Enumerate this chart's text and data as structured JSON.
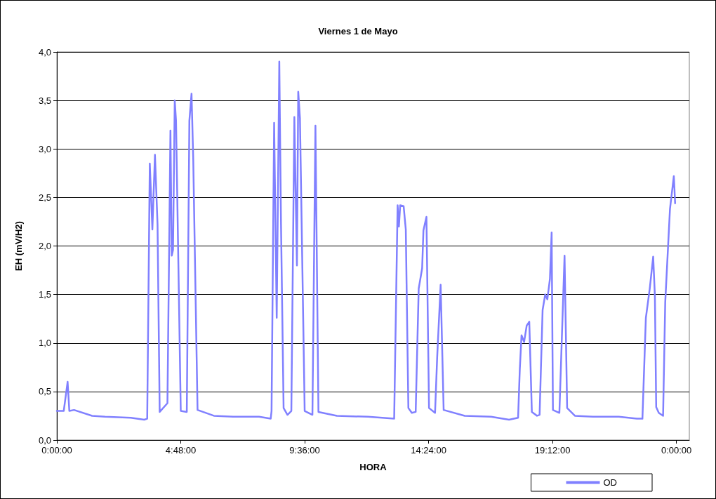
{
  "chart_data": {
    "type": "line",
    "title": "Viernes 1 de Mayo",
    "xlabel": "HORA",
    "ylabel": "EH (mV/H2)",
    "xlim": [
      "--05-01T00:00",
      "--05-02T00:30"
    ],
    "xticks": [
      {
        "value": "--05-01T00:00",
        "label": "0:00:00"
      },
      {
        "value": "--05-01T04:48",
        "label": "4:48:00"
      },
      {
        "value": "--05-01T09:36",
        "label": "9:36:00"
      },
      {
        "value": "--05-01T14:24",
        "label": "14:24:00"
      },
      {
        "value": "--05-01T19:12",
        "label": "19:12:00"
      },
      {
        "value": "--05-02T00:00",
        "label": "0:00:00"
      }
    ],
    "ylim": [
      0,
      4
    ],
    "yticks": [
      {
        "value": 0,
        "label": "0,0"
      },
      {
        "value": 0.5,
        "label": "0,5"
      },
      {
        "value": 1,
        "label": "1,0"
      },
      {
        "value": 1.5,
        "label": "1,5"
      },
      {
        "value": 2,
        "label": "2,0"
      },
      {
        "value": 2.5,
        "label": "2,5"
      },
      {
        "value": 3,
        "label": "3,0"
      },
      {
        "value": 3.5,
        "label": "3,5"
      },
      {
        "value": 4,
        "label": "4,0"
      }
    ],
    "grid": "y",
    "legend": "bottom right",
    "marker": "none",
    "line_style": "solid",
    "series": [
      {
        "name": "OD",
        "color": "#8080ff",
        "x": [
          "--05-01T00:00",
          "--05-01T00:16",
          "--05-01T00:25",
          "--05-01T00:29",
          "--05-01T00:40",
          "--05-01T01:22",
          "--05-01T01:52",
          "--05-01T02:52",
          "--05-01T03:23",
          "--05-01T03:30",
          "--05-01T03:36",
          "--05-01T03:42",
          "--05-01T03:48",
          "--05-01T03:54",
          "--05-01T03:59",
          "--05-01T04:17",
          "--05-01T04:24",
          "--05-01T04:27",
          "--05-01T04:30",
          "--05-01T04:34",
          "--05-01T04:37",
          "--05-01T04:48",
          "--05-01T05:02",
          "--05-01T05:08",
          "--05-01T05:13",
          "--05-01T05:17",
          "--05-01T05:27",
          "--05-01T06:05",
          "--05-01T06:50",
          "--05-01T07:50",
          "--05-01T08:17",
          "--05-01T08:19",
          "--05-01T08:25",
          "--05-01T08:31",
          "--05-01T08:37",
          "--05-01T08:41",
          "--05-01T08:47",
          "--05-01T08:56",
          "--05-01T09:05",
          "--05-01T09:12",
          "--05-01T09:18",
          "--05-01T09:21",
          "--05-01T09:25",
          "--05-01T09:36",
          "--05-01T09:54",
          "--05-01T10:01",
          "--05-01T10:08",
          "--05-01T10:51",
          "--05-01T12:03",
          "--05-01T13:04",
          "--05-01T13:12",
          "--05-01T13:15",
          "--05-01T13:18",
          "--05-01T13:26",
          "--05-01T13:31",
          "--05-01T13:37",
          "--05-01T13:45",
          "--05-01T13:54",
          "--05-01T14:01",
          "--05-01T14:09",
          "--05-01T14:12",
          "--05-01T14:19",
          "--05-01T14:25",
          "--05-01T14:39",
          "--05-01T14:44",
          "--05-01T14:52",
          "--05-01T14:59",
          "--05-01T15:48",
          "--05-01T16:49",
          "--05-01T17:31",
          "--05-01T17:52",
          "--05-01T17:56",
          "--05-01T18:00",
          "--05-01T18:06",
          "--05-01T18:12",
          "--05-01T18:18",
          "--05-01T18:24",
          "--05-01T18:36",
          "--05-01T18:42",
          "--05-01T18:49",
          "--05-01T18:55",
          "--05-01T19:00",
          "--05-01T19:06",
          "--05-01T19:10",
          "--05-01T19:13",
          "--05-01T19:28",
          "--05-01T19:40",
          "--05-01T19:46",
          "--05-01T20:04",
          "--05-01T20:46",
          "--05-01T21:46",
          "--05-01T22:28",
          "--05-01T22:41",
          "--05-01T22:49",
          "--05-01T22:58",
          "--05-01T23:06",
          "--05-01T23:10",
          "--05-01T23:13",
          "--05-01T23:19",
          "--05-01T23:29",
          "--05-01T23:34",
          "--05-01T23:45",
          "--05-01T23:54",
          "--05-01T23:57"
        ],
        "values": [
          0.3,
          0.3,
          0.6,
          0.3,
          0.31,
          0.25,
          0.24,
          0.23,
          0.21,
          0.22,
          2.85,
          2.17,
          2.94,
          2.22,
          0.29,
          0.38,
          3.19,
          1.9,
          1.96,
          3.5,
          3.29,
          0.3,
          0.29,
          3.29,
          3.57,
          2.89,
          0.31,
          0.25,
          0.24,
          0.24,
          0.22,
          0.3,
          3.27,
          1.26,
          3.9,
          2.22,
          0.33,
          0.26,
          0.3,
          3.33,
          1.8,
          3.59,
          3.32,
          0.3,
          0.26,
          3.24,
          0.29,
          0.25,
          0.24,
          0.22,
          2.42,
          2.2,
          2.42,
          2.41,
          2.17,
          0.33,
          0.28,
          0.29,
          1.56,
          1.77,
          2.16,
          2.3,
          0.33,
          0.28,
          0.86,
          1.6,
          0.31,
          0.25,
          0.24,
          0.21,
          0.23,
          0.73,
          1.08,
          1.01,
          1.18,
          1.22,
          0.29,
          0.25,
          0.26,
          1.34,
          1.5,
          1.45,
          1.66,
          2.14,
          0.31,
          0.28,
          1.9,
          0.33,
          0.25,
          0.24,
          0.24,
          0.22,
          0.22,
          1.26,
          1.56,
          1.89,
          1.48,
          0.34,
          0.28,
          0.25,
          1.42,
          2.38,
          2.72,
          2.44
        ]
      }
    ]
  }
}
